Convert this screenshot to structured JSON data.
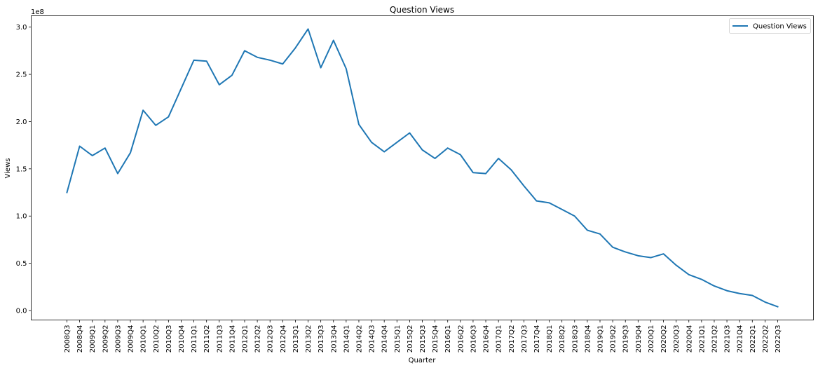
{
  "chart_data": {
    "type": "line",
    "title": "Question Views",
    "xlabel": "Quarter",
    "ylabel": "Views",
    "y_offset_label": "1e8",
    "ylim": [
      -0.1,
      3.12
    ],
    "y_ticks": [
      0.0,
      0.5,
      1.0,
      1.5,
      2.0,
      2.5,
      3.0
    ],
    "y_tick_labels": [
      "0.0",
      "0.5",
      "1.0",
      "1.5",
      "2.0",
      "2.5",
      "3.0"
    ],
    "grid": false,
    "legend_position": "top-right",
    "categories": [
      "2008Q3",
      "2008Q4",
      "2009Q1",
      "2009Q2",
      "2009Q3",
      "2009Q4",
      "2010Q1",
      "2010Q2",
      "2010Q3",
      "2010Q4",
      "2011Q1",
      "2011Q2",
      "2011Q3",
      "2011Q4",
      "2012Q1",
      "2012Q2",
      "2012Q3",
      "2012Q4",
      "2013Q1",
      "2013Q2",
      "2013Q3",
      "2013Q4",
      "2014Q1",
      "2014Q2",
      "2014Q3",
      "2014Q4",
      "2015Q1",
      "2015Q2",
      "2015Q3",
      "2015Q4",
      "2016Q1",
      "2016Q2",
      "2016Q3",
      "2016Q4",
      "2017Q1",
      "2017Q2",
      "2017Q3",
      "2017Q4",
      "2018Q1",
      "2018Q2",
      "2018Q3",
      "2018Q4",
      "2019Q1",
      "2019Q2",
      "2019Q3",
      "2019Q4",
      "2020Q1",
      "2020Q2",
      "2020Q3",
      "2020Q4",
      "2021Q1",
      "2021Q2",
      "2021Q3",
      "2021Q4",
      "2022Q1",
      "2022Q2",
      "2022Q3"
    ],
    "series": [
      {
        "name": "Question Views",
        "color": "#1f77b4",
        "values": [
          1.25,
          1.74,
          1.64,
          1.72,
          1.45,
          1.67,
          2.12,
          1.96,
          2.05,
          2.35,
          2.65,
          2.64,
          2.39,
          2.49,
          2.75,
          2.68,
          2.65,
          2.61,
          2.78,
          2.98,
          2.57,
          2.86,
          2.56,
          1.97,
          1.78,
          1.68,
          1.78,
          1.88,
          1.7,
          1.61,
          1.72,
          1.65,
          1.46,
          1.45,
          1.61,
          1.49,
          1.32,
          1.16,
          1.14,
          1.07,
          1.0,
          0.85,
          0.81,
          0.67,
          0.62,
          0.58,
          0.56,
          0.6,
          0.48,
          0.38,
          0.33,
          0.26,
          0.21,
          0.18,
          0.16,
          0.09,
          0.04
        ]
      }
    ]
  }
}
